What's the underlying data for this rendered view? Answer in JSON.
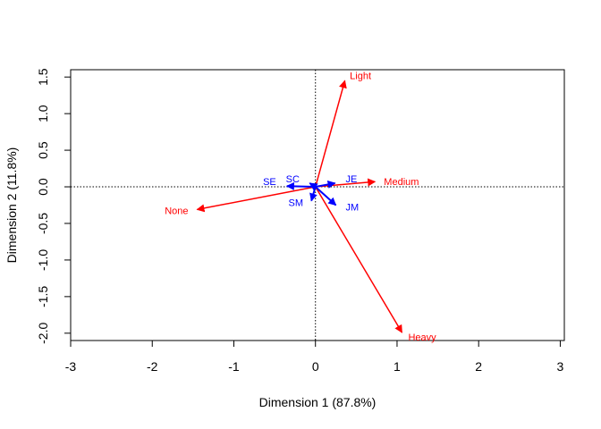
{
  "chart_data": {
    "type": "scatter",
    "title": "",
    "xlabel": "Dimension 1 (87.8%)",
    "ylabel": "Dimension 2 (11.8%)",
    "xlim": [
      -3.0,
      3.05
    ],
    "ylim": [
      -2.1,
      1.6
    ],
    "xticks": [
      -3,
      -2,
      -1,
      0,
      1,
      2,
      3
    ],
    "yticks": [
      -2.0,
      -1.5,
      -1.0,
      -0.5,
      0.0,
      0.5,
      1.0,
      1.5
    ],
    "xtick_labels": [
      "-3",
      "-2",
      "-1",
      "0",
      "1",
      "2",
      "3"
    ],
    "ytick_labels": [
      "-2.0",
      "-1.5",
      "-1.0",
      "-0.5",
      "0.0",
      "0.5",
      "1.0",
      "1.5"
    ],
    "reference_lines": {
      "x": 0,
      "y": 0,
      "style": "dotted"
    },
    "grid": false,
    "legend": "none",
    "series": [
      {
        "color": "#ff0000",
        "points": [
          {
            "label": "Light",
            "x": 0.36,
            "y": 1.45
          },
          {
            "label": "Medium",
            "x": 0.73,
            "y": 0.07
          },
          {
            "label": "None",
            "x": -1.45,
            "y": -0.31
          },
          {
            "label": "Heavy",
            "x": 1.06,
            "y": -1.99
          }
        ]
      },
      {
        "color": "#0000ff",
        "points": [
          {
            "label": "SC",
            "x": -0.07,
            "y": 0.05
          },
          {
            "label": "SE",
            "x": -0.35,
            "y": 0.01
          },
          {
            "label": "JE",
            "x": 0.24,
            "y": 0.05
          },
          {
            "label": "SM",
            "x": -0.05,
            "y": -0.19
          },
          {
            "label": "JM",
            "x": 0.25,
            "y": -0.25
          }
        ]
      }
    ]
  }
}
